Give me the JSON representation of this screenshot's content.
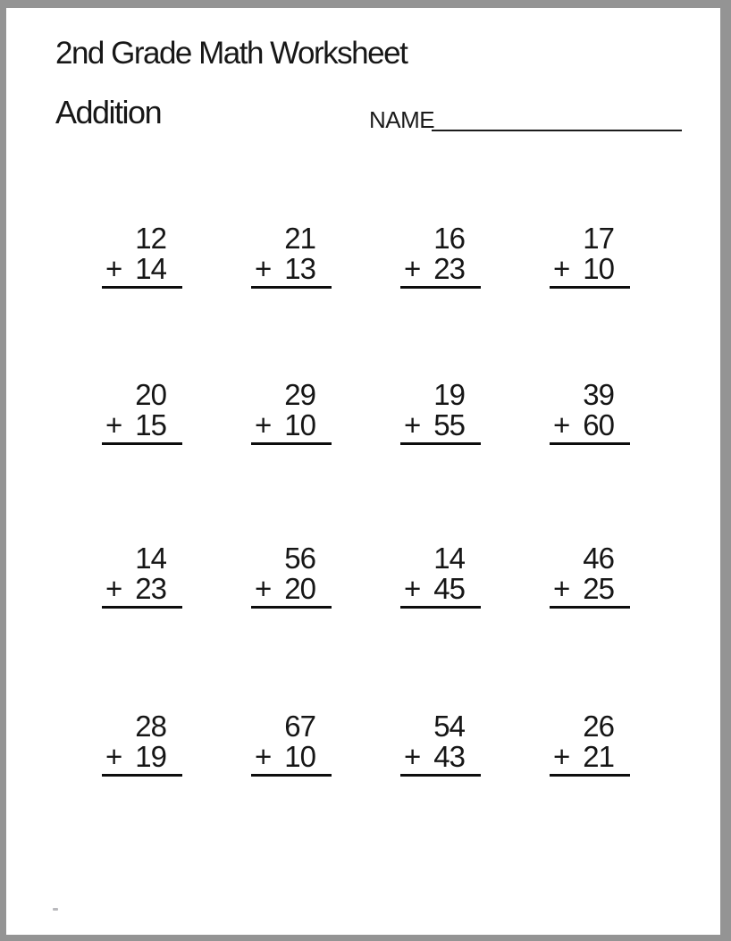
{
  "header": {
    "title": "2nd Grade Math Worksheet",
    "subtitle": "Addition",
    "name_label": "NAME"
  },
  "operator": "+",
  "problems": [
    {
      "addend_top": "12",
      "addend_bottom": "14"
    },
    {
      "addend_top": "21",
      "addend_bottom": "13"
    },
    {
      "addend_top": "16",
      "addend_bottom": "23"
    },
    {
      "addend_top": "17",
      "addend_bottom": "10"
    },
    {
      "addend_top": "20",
      "addend_bottom": "15"
    },
    {
      "addend_top": "29",
      "addend_bottom": "10"
    },
    {
      "addend_top": "19",
      "addend_bottom": "55"
    },
    {
      "addend_top": "39",
      "addend_bottom": "60"
    },
    {
      "addend_top": "14",
      "addend_bottom": "23"
    },
    {
      "addend_top": "56",
      "addend_bottom": "20"
    },
    {
      "addend_top": "14",
      "addend_bottom": "45"
    },
    {
      "addend_top": "46",
      "addend_bottom": "25"
    },
    {
      "addend_top": "28",
      "addend_bottom": "19"
    },
    {
      "addend_top": "67",
      "addend_bottom": "10"
    },
    {
      "addend_top": "54",
      "addend_bottom": "43"
    },
    {
      "addend_top": "26",
      "addend_bottom": "21"
    }
  ],
  "colors": {
    "border_gray": "#949494",
    "paper_white": "#ffffff",
    "ink_black": "#161616"
  }
}
